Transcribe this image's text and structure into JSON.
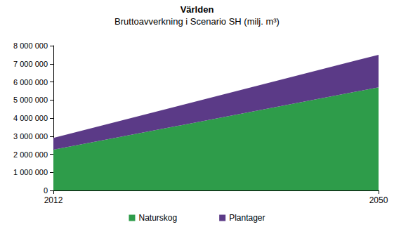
{
  "chart_data": {
    "type": "area",
    "title": "Världen",
    "subtitle": "Bruttoavverkning i Scenario SH (milj. m³)",
    "categories": [
      "2012",
      "2050"
    ],
    "series": [
      {
        "name": "Naturskog",
        "color": "#2e9c4a",
        "values": [
          2250000,
          5700000
        ]
      },
      {
        "name": "Plantager",
        "color": "#5b3a87",
        "values": [
          650000,
          1800000
        ]
      }
    ],
    "ylim": [
      0,
      8000000
    ],
    "yticks": [
      0,
      {
        "value": 1000000,
        "label": "1 000 000"
      },
      {
        "value": 2000000,
        "label": "2 000 000"
      },
      {
        "value": 3000000,
        "label": "3 000 000"
      },
      {
        "value": 4000000,
        "label": "4 000 000"
      },
      {
        "value": 5000000,
        "label": "5 000 000"
      },
      {
        "value": 6000000,
        "label": "6 000 000"
      },
      {
        "value": 7000000,
        "label": "7 000 000"
      },
      {
        "value": 8000000,
        "label": "8 000 000"
      }
    ],
    "stacked": true,
    "grid": false,
    "legend": "bottom"
  }
}
